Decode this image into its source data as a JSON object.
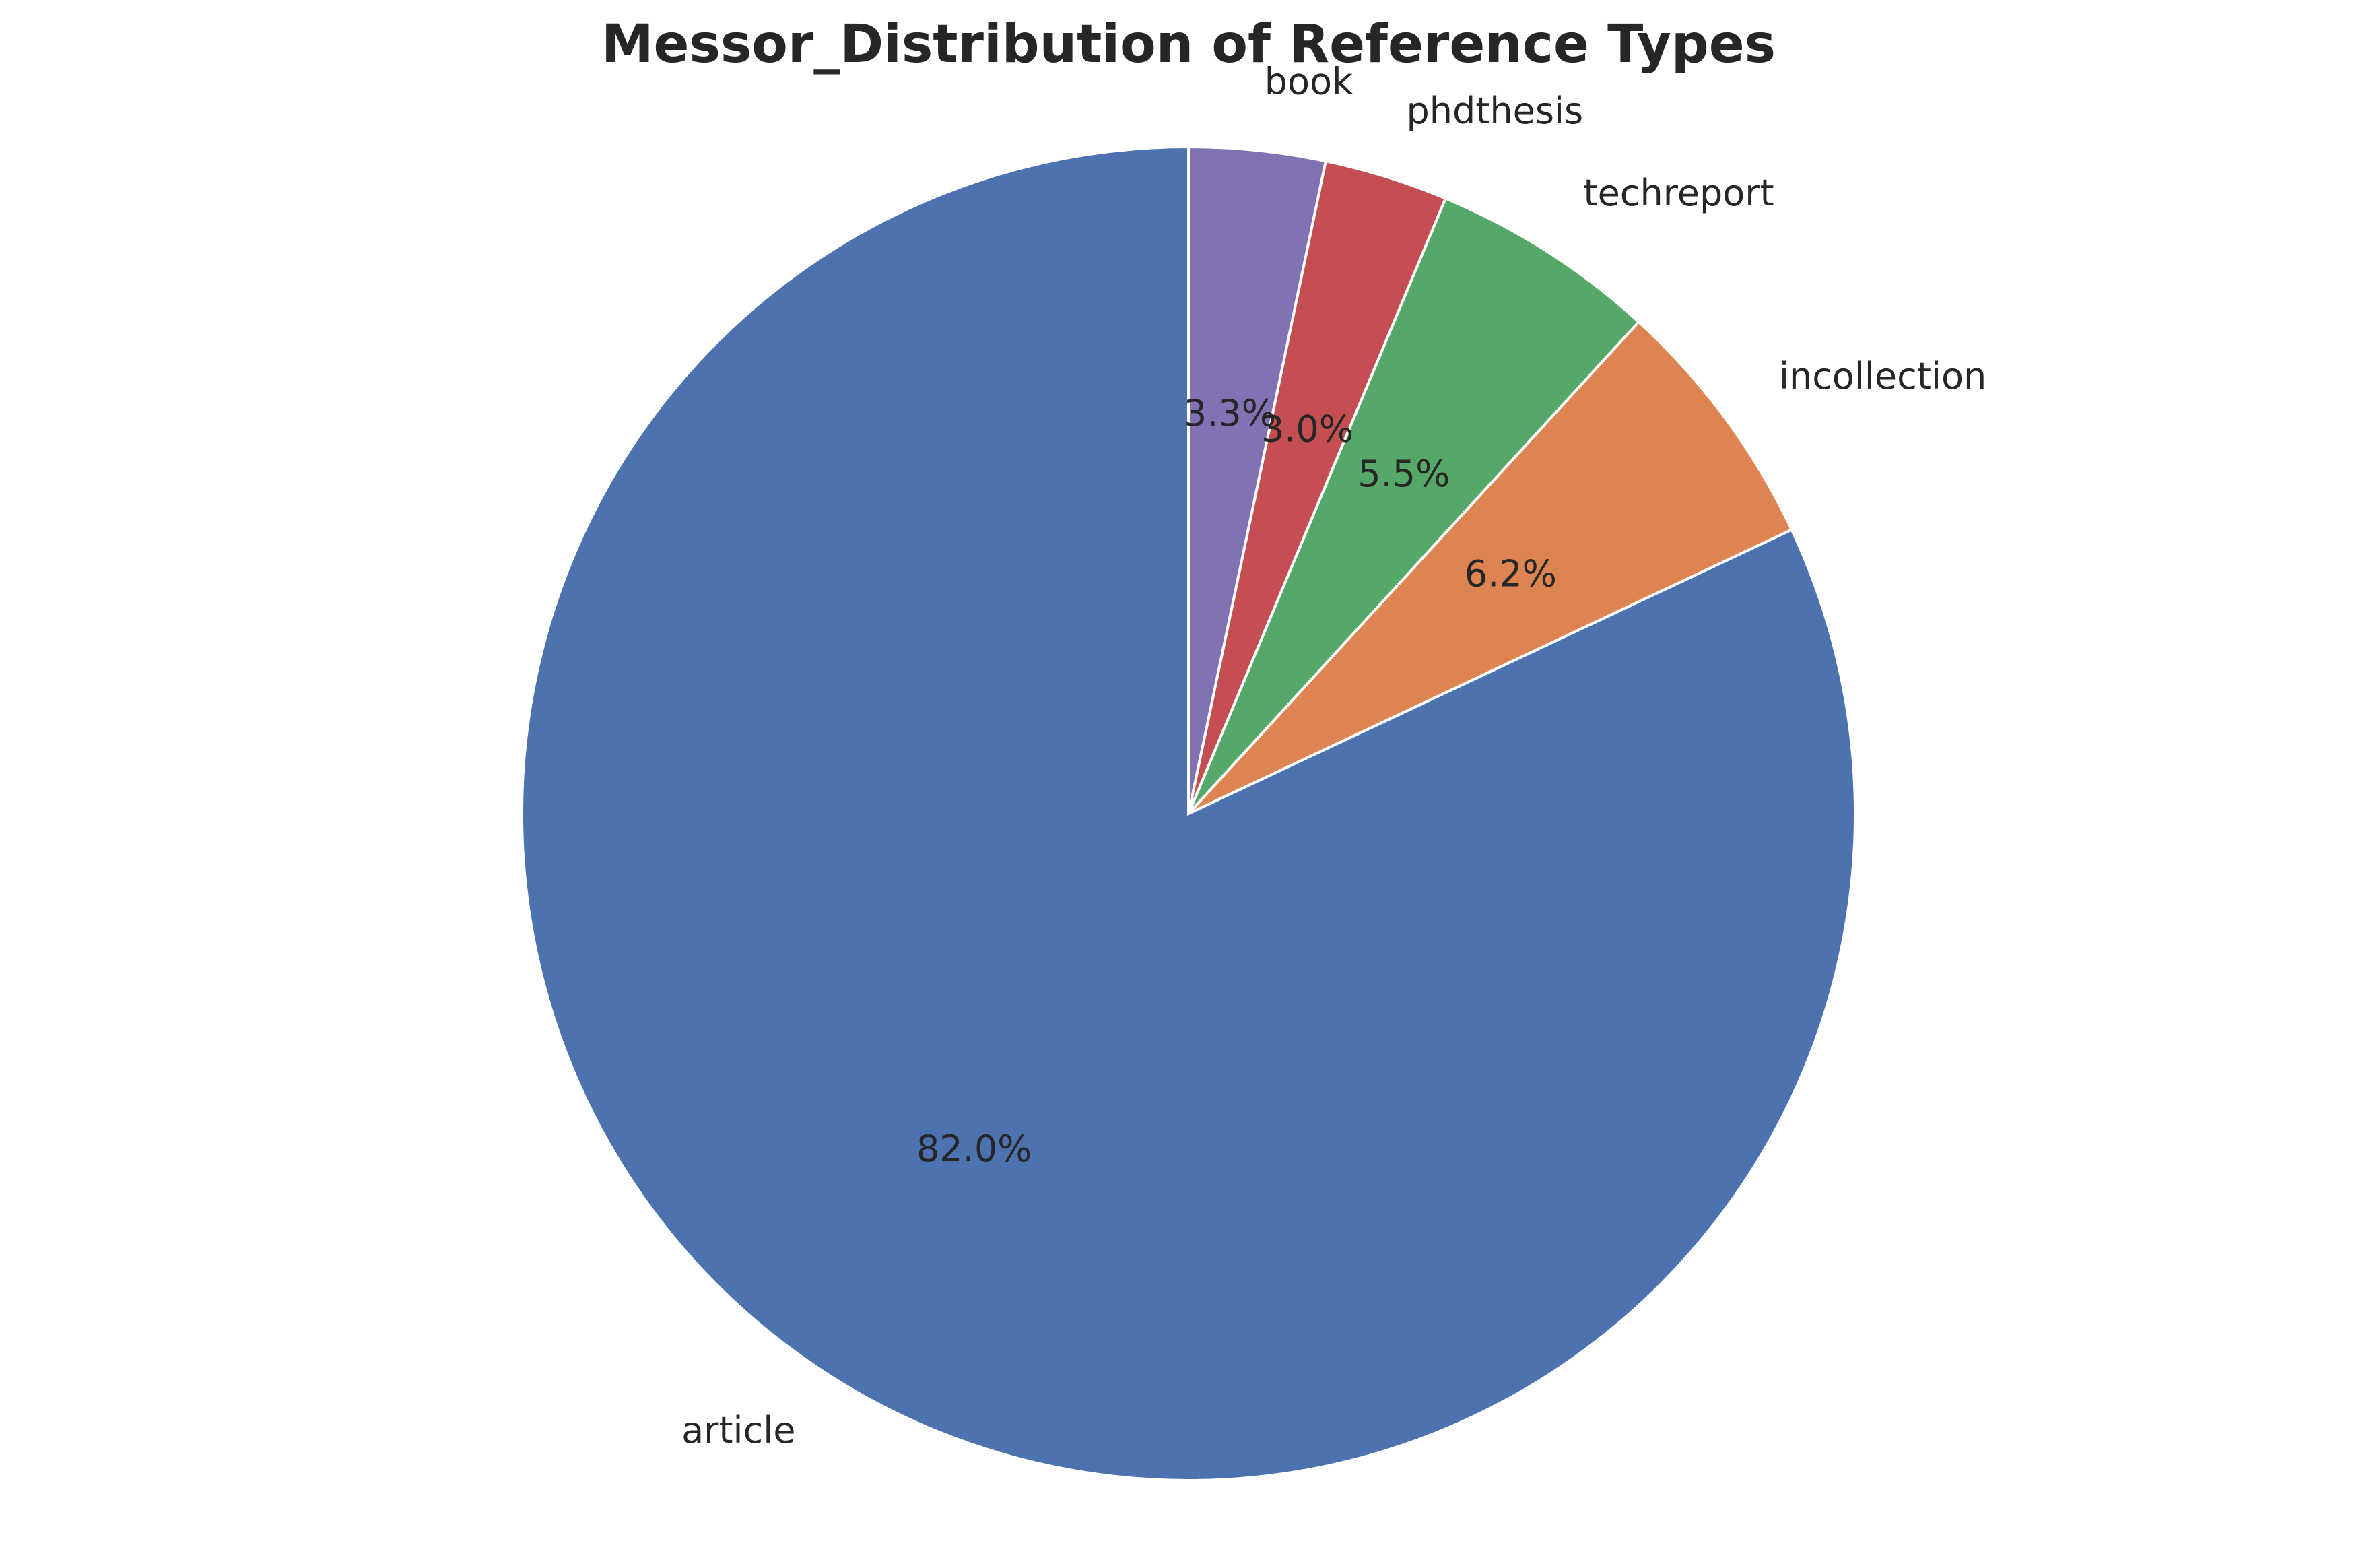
{
  "chart_data": {
    "type": "pie",
    "title": "Messor_Distribution of Reference Types",
    "start_angle_deg": 90,
    "direction": "counterclockwise",
    "slices": [
      {
        "label": "article",
        "value": 82.0,
        "pct_text": "82.0%",
        "color": "#4c72b0"
      },
      {
        "label": "incollection",
        "value": 6.2,
        "pct_text": "6.2%",
        "color": "#dd8452"
      },
      {
        "label": "techreport",
        "value": 5.5,
        "pct_text": "5.5%",
        "color": "#55a868"
      },
      {
        "label": "phdthesis",
        "value": 3.0,
        "pct_text": "3.0%",
        "color": "#c44e52"
      },
      {
        "label": "book",
        "value": 3.3,
        "pct_text": "3.3%",
        "color": "#8172b3"
      }
    ]
  }
}
